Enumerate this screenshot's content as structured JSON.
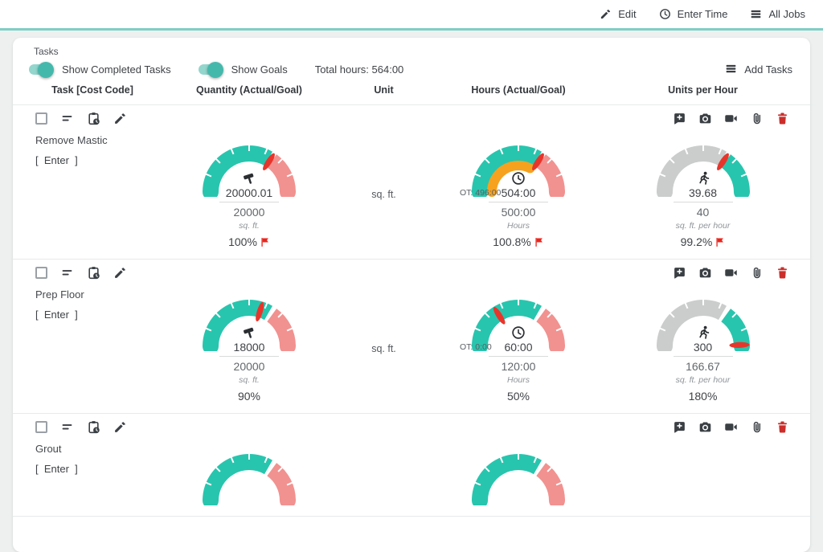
{
  "colors": {
    "teal": "#28C5AE",
    "pink": "#F19290",
    "orange": "#F6A21E",
    "gray": "#CBCDCC",
    "needle": "#E8352B",
    "flag": "#E8251D",
    "accent_line": "#7FCEC5",
    "toggle_track": "#93D6CD",
    "toggle_knob": "#45B8AC"
  },
  "topbar": {
    "edit": "Edit",
    "enter_time": "Enter Time",
    "all_jobs": "All Jobs"
  },
  "panel": {
    "title": "Tasks",
    "toggle_completed": "Show Completed Tasks",
    "toggle_goals": "Show Goals",
    "total_hours": "Total hours: 564:00",
    "add_tasks": "Add Tasks"
  },
  "columns": {
    "task": "Task [Cost Code]",
    "quantity": "Quantity (Actual/Goal)",
    "unit": "Unit",
    "hours": "Hours (Actual/Goal)",
    "units_per_hour": "Units per Hour"
  },
  "enter_button": "[  Enter  ]",
  "tasks": [
    {
      "name": "Remove Mastic",
      "unit": "sq. ft.",
      "quantity": {
        "icon": "hammer-icon",
        "value": "20000.01",
        "goal": "20000",
        "unit_label": "sq. ft.",
        "percent": "100%",
        "flag": true,
        "gauge": {
          "segs": [
            [
              180,
              60,
              "teal"
            ],
            [
              54,
              0,
              "pink"
            ]
          ],
          "needle": 57
        }
      },
      "hours": {
        "icon": "clock-icon",
        "value": "504:00",
        "goal": "500:00",
        "unit_label": "Hours",
        "percent": "100.8%",
        "flag": true,
        "ot": "OT: 496:00",
        "gauge": {
          "segs": [
            [
              180,
              60,
              "teal"
            ],
            [
              54,
              0,
              "pink"
            ]
          ],
          "inner": [
            180,
            64,
            "orange"
          ],
          "needle": 57
        }
      },
      "units_per_hour": {
        "icon": "runner-icon",
        "value": "39.68",
        "goal": "40",
        "unit_label": "sq. ft. per hour",
        "percent": "99.2%",
        "flag": true,
        "gauge": {
          "segs": [
            [
              180,
              60,
              "gray"
            ],
            [
              54,
              0,
              "teal"
            ]
          ],
          "needle": 57
        }
      }
    },
    {
      "name": "Prep Floor",
      "unit": "sq. ft.",
      "quantity": {
        "icon": "hammer-icon",
        "value": "18000",
        "goal": "20000",
        "unit_label": "sq. ft.",
        "percent": "90%",
        "flag": false,
        "gauge": {
          "segs": [
            [
              180,
              60,
              "teal"
            ],
            [
              54,
              0,
              "pink"
            ]
          ],
          "needle": 73
        }
      },
      "hours": {
        "icon": "clock-icon",
        "value": "60:00",
        "goal": "120:00",
        "unit_label": "Hours",
        "percent": "50%",
        "flag": false,
        "ot": "OT: 0:00",
        "gauge": {
          "segs": [
            [
              180,
              60,
              "teal"
            ],
            [
              54,
              0,
              "pink"
            ]
          ],
          "needle": 122
        }
      },
      "units_per_hour": {
        "icon": "runner-icon",
        "value": "300",
        "goal": "166.67",
        "unit_label": "sq. ft. per hour",
        "percent": "180%",
        "flag": false,
        "gauge": {
          "segs": [
            [
              180,
              60,
              "gray"
            ],
            [
              54,
              0,
              "teal"
            ]
          ],
          "needle": 2
        }
      }
    },
    {
      "name": "Grout",
      "quantity": {
        "gauge": {
          "segs": [
            [
              180,
              60,
              "teal"
            ],
            [
              54,
              0,
              "pink"
            ]
          ]
        }
      },
      "hours": {
        "gauge": {
          "segs": [
            [
              180,
              60,
              "teal"
            ],
            [
              54,
              0,
              "pink"
            ]
          ]
        }
      },
      "units_per_hour": null
    }
  ]
}
